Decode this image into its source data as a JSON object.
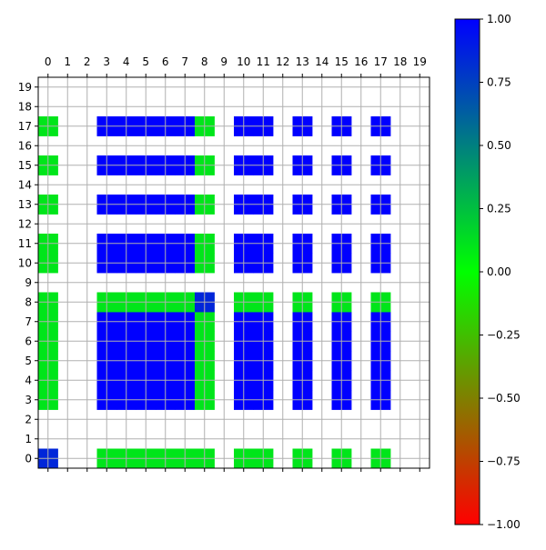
{
  "chart_data": {
    "type": "heatmap",
    "title": "",
    "xlabel": "",
    "ylabel": "",
    "x_ticks": [
      "0",
      "1",
      "2",
      "3",
      "4",
      "5",
      "6",
      "7",
      "8",
      "9",
      "10",
      "11",
      "12",
      "13",
      "14",
      "15",
      "16",
      "17",
      "18",
      "19"
    ],
    "y_ticks": [
      "0",
      "1",
      "2",
      "3",
      "4",
      "5",
      "6",
      "7",
      "8",
      "9",
      "10",
      "11",
      "12",
      "13",
      "14",
      "15",
      "16",
      "17",
      "18",
      "19"
    ],
    "x_axis_position": "top",
    "grid": true,
    "blank_value_meaning": "cells with no value are drawn white",
    "colormap": {
      "colors": [
        "#ff0000",
        "#00ff00",
        "#0000ff"
      ],
      "vmin": -1,
      "vmax": 1
    },
    "colorbar": {
      "ticks": [
        "1.00",
        "0.75",
        "0.50",
        "0.25",
        "0.00",
        "−0.25",
        "−0.50",
        "−0.75",
        "−1.00"
      ],
      "tick_values": [
        1,
        0.75,
        0.5,
        0.25,
        0,
        -0.25,
        -0.5,
        -0.75,
        -1
      ]
    },
    "value_groups": {
      "outer_value": 0.1,
      "inner_value": 1.0,
      "corner_value": 0.85,
      "pattern_columns": [
        0,
        3,
        4,
        5,
        6,
        7,
        8,
        10,
        11,
        13,
        15,
        17
      ],
      "pattern_rows": [
        0,
        3,
        4,
        5,
        6,
        7,
        8,
        10,
        11,
        13,
        15,
        17
      ],
      "outer_columns": [
        0
      ],
      "outer_rows": [
        8
      ],
      "cross_columns": [
        8
      ],
      "cross_rows": [
        0
      ]
    }
  }
}
